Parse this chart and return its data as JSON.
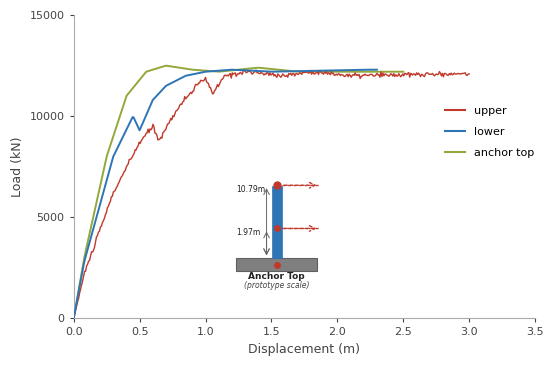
{
  "title": "",
  "xlabel": "Displacement (m)",
  "ylabel": "Load (kN)",
  "xlim": [
    0,
    3.5
  ],
  "ylim": [
    0,
    15000
  ],
  "xticks": [
    0,
    0.5,
    1.0,
    1.5,
    2.0,
    2.5,
    3.0,
    3.5
  ],
  "yticks": [
    0,
    5000,
    10000,
    15000
  ],
  "upper_color": "#c0392b",
  "lower_color": "#2e75b6",
  "anchor_top_color": "#92a83a",
  "inset_label1": "10.79m",
  "inset_label2": "1.97m",
  "inset_title": "Anchor Top",
  "inset_subtitle": "(prototype scale)",
  "legend_labels": [
    "upper",
    "lower",
    "anchor top"
  ],
  "figsize": [
    5.55,
    3.67
  ],
  "dpi": 100
}
